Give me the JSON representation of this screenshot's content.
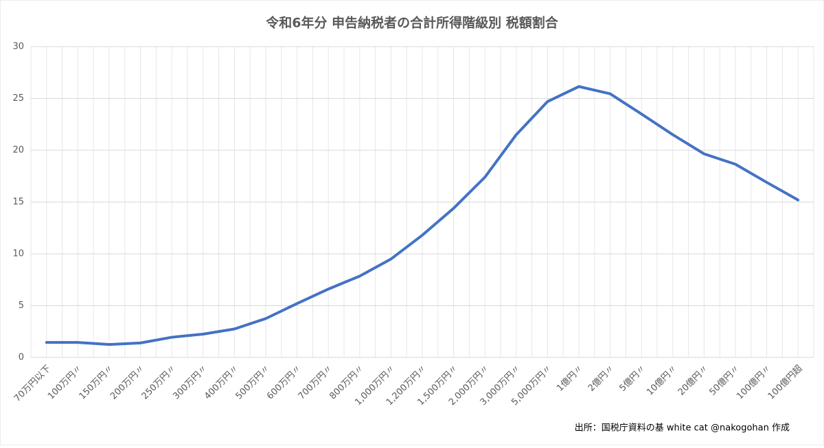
{
  "chart_data": {
    "type": "line",
    "title": "令和6年分 申告納税者の合計所得階級別 税額割合",
    "note": "出所：国税庁資料の基 white cat  @nakogohan 作成",
    "categories": [
      "70万円以下",
      "100万円〃",
      "150万円〃",
      "200万円〃",
      "250万円〃",
      "300万円〃",
      "400万円〃",
      "500万円〃",
      "600万円〃",
      "700万円〃",
      "800万円〃",
      "1,000万円〃",
      "1,200万円〃",
      "1,500万円〃",
      "2,000万円〃",
      "3,000万円〃",
      "5,000万円〃",
      "1億円〃",
      "2億円〃",
      "5億円〃",
      "10億円〃",
      "20億円〃",
      "50億円〃",
      "100億円〃",
      "100億円超"
    ],
    "values": [
      1.45,
      1.45,
      1.25,
      1.4,
      1.95,
      2.25,
      2.75,
      3.75,
      5.2,
      6.6,
      7.85,
      9.5,
      11.8,
      14.4,
      17.4,
      21.5,
      24.7,
      26.15,
      25.45,
      23.5,
      21.5,
      19.65,
      18.65,
      16.9,
      15.2
    ],
    "color": "#4472c4",
    "ylim": [
      0,
      30
    ],
    "yticks": [
      0,
      5,
      10,
      15,
      20,
      25,
      30
    ],
    "grid": true
  }
}
